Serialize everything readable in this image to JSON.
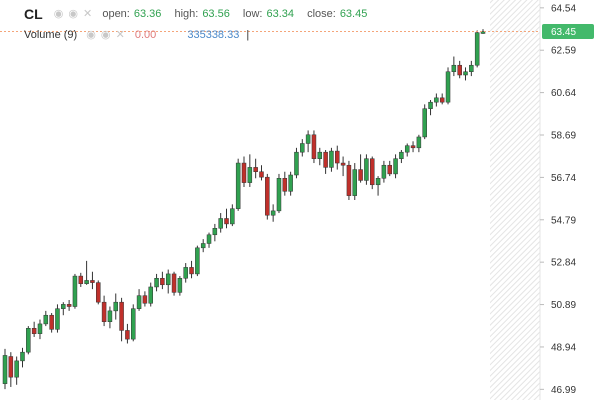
{
  "legend": {
    "symbol": "CL",
    "open_label": "open:",
    "open_value": "63.36",
    "high_label": "high:",
    "high_value": "63.56",
    "low_label": "low:",
    "low_value": "63.34",
    "close_label": "close:",
    "close_value": "63.45",
    "volume_label": "Volume (9)",
    "volume_zero": "0.00",
    "volume_value": "335338.33",
    "cursor_mark": "|"
  },
  "colors": {
    "up": "#30a150",
    "down": "#c0302b",
    "badge": "#43b96b",
    "last_line": "#f4a57a"
  },
  "chart_data": {
    "type": "candlestick",
    "title": "CL",
    "ylim": [
      46.5,
      64.9
    ],
    "y_ticks": [
      "64.54",
      "62.59",
      "60.64",
      "58.69",
      "56.74",
      "54.79",
      "52.84",
      "50.89",
      "48.94",
      "46.99"
    ],
    "last_price": "63.45",
    "ohlc": [
      [
        47.25,
        48.85,
        47.0,
        48.55
      ],
      [
        48.5,
        48.7,
        47.1,
        47.55
      ],
      [
        47.55,
        48.5,
        47.2,
        48.3
      ],
      [
        48.3,
        48.9,
        48.0,
        48.7
      ],
      [
        48.7,
        49.9,
        48.6,
        49.8
      ],
      [
        49.8,
        50.1,
        49.4,
        49.55
      ],
      [
        49.55,
        50.2,
        49.3,
        50.0
      ],
      [
        50.0,
        50.6,
        49.9,
        50.4
      ],
      [
        50.4,
        50.5,
        49.6,
        49.75
      ],
      [
        49.75,
        50.9,
        49.6,
        50.7
      ],
      [
        50.7,
        51.0,
        50.4,
        50.9
      ],
      [
        50.9,
        51.1,
        50.6,
        50.8
      ],
      [
        50.8,
        52.3,
        50.7,
        52.2
      ],
      [
        52.2,
        52.35,
        51.7,
        51.85
      ],
      [
        51.85,
        52.9,
        51.8,
        52.0
      ],
      [
        52.0,
        52.4,
        51.6,
        51.9
      ],
      [
        51.9,
        52.0,
        50.9,
        51.0
      ],
      [
        51.0,
        51.3,
        49.9,
        50.1
      ],
      [
        50.1,
        50.8,
        49.8,
        50.6
      ],
      [
        50.6,
        51.4,
        50.2,
        51.0
      ],
      [
        51.0,
        51.2,
        49.2,
        49.7
      ],
      [
        49.7,
        50.0,
        49.1,
        49.3
      ],
      [
        49.3,
        50.9,
        49.2,
        50.7
      ],
      [
        50.7,
        51.6,
        50.6,
        51.3
      ],
      [
        51.3,
        51.5,
        50.8,
        50.95
      ],
      [
        50.95,
        51.9,
        50.8,
        51.7
      ],
      [
        51.7,
        52.3,
        51.5,
        52.1
      ],
      [
        52.1,
        52.4,
        51.6,
        51.8
      ],
      [
        51.8,
        52.5,
        51.4,
        52.3
      ],
      [
        52.3,
        52.4,
        51.3,
        51.45
      ],
      [
        51.45,
        52.2,
        51.3,
        52.1
      ],
      [
        52.1,
        52.8,
        51.9,
        52.6
      ],
      [
        52.6,
        52.9,
        52.1,
        52.3
      ],
      [
        52.3,
        53.6,
        52.2,
        53.5
      ],
      [
        53.5,
        53.9,
        53.3,
        53.7
      ],
      [
        53.7,
        54.2,
        53.5,
        54.1
      ],
      [
        54.1,
        54.6,
        53.8,
        54.4
      ],
      [
        54.4,
        55.1,
        54.2,
        54.85
      ],
      [
        54.85,
        55.3,
        54.4,
        54.6
      ],
      [
        54.6,
        55.5,
        54.5,
        55.3
      ],
      [
        55.3,
        57.6,
        55.2,
        57.4
      ],
      [
        57.4,
        57.7,
        56.3,
        56.5
      ],
      [
        56.5,
        57.8,
        56.3,
        57.2
      ],
      [
        57.2,
        57.6,
        56.7,
        57.0
      ],
      [
        57.0,
        57.3,
        56.6,
        56.75
      ],
      [
        56.75,
        56.9,
        54.8,
        55.0
      ],
      [
        55.0,
        55.5,
        54.7,
        55.2
      ],
      [
        55.2,
        56.9,
        55.1,
        56.7
      ],
      [
        56.7,
        57.0,
        55.9,
        56.1
      ],
      [
        56.1,
        57.0,
        55.9,
        56.85
      ],
      [
        56.85,
        58.1,
        56.7,
        57.9
      ],
      [
        57.9,
        58.5,
        57.7,
        58.3
      ],
      [
        58.3,
        58.9,
        57.9,
        58.7
      ],
      [
        58.7,
        58.9,
        57.4,
        57.6
      ],
      [
        57.6,
        58.1,
        57.3,
        57.9
      ],
      [
        57.9,
        58.0,
        56.9,
        57.2
      ],
      [
        57.2,
        58.1,
        57.0,
        57.95
      ],
      [
        57.95,
        58.2,
        57.1,
        57.4
      ],
      [
        57.4,
        57.7,
        56.8,
        57.3
      ],
      [
        57.3,
        57.5,
        55.7,
        55.9
      ],
      [
        55.9,
        57.4,
        55.7,
        57.1
      ],
      [
        57.1,
        57.8,
        56.5,
        56.6
      ],
      [
        56.6,
        57.8,
        56.4,
        57.6
      ],
      [
        57.6,
        57.7,
        56.2,
        56.4
      ],
      [
        56.4,
        56.8,
        55.9,
        56.7
      ],
      [
        56.7,
        57.5,
        56.5,
        57.3
      ],
      [
        57.3,
        57.5,
        56.8,
        56.9
      ],
      [
        56.9,
        57.8,
        56.7,
        57.6
      ],
      [
        57.6,
        58.0,
        57.4,
        57.9
      ],
      [
        57.9,
        58.3,
        57.7,
        58.2
      ],
      [
        58.2,
        58.4,
        57.9,
        58.1
      ],
      [
        58.1,
        58.7,
        57.9,
        58.6
      ],
      [
        58.6,
        60.1,
        58.5,
        59.9
      ],
      [
        59.9,
        60.3,
        59.6,
        60.2
      ],
      [
        60.2,
        60.6,
        60.0,
        60.4
      ],
      [
        60.4,
        60.6,
        60.1,
        60.2
      ],
      [
        60.2,
        61.8,
        60.1,
        61.6
      ],
      [
        61.6,
        62.3,
        61.4,
        61.9
      ],
      [
        61.9,
        62.1,
        61.3,
        61.45
      ],
      [
        61.45,
        61.8,
        61.2,
        61.6
      ],
      [
        61.6,
        62.1,
        61.4,
        61.9
      ],
      [
        61.9,
        63.5,
        61.8,
        63.4
      ],
      [
        63.36,
        63.56,
        63.34,
        63.45
      ]
    ]
  }
}
